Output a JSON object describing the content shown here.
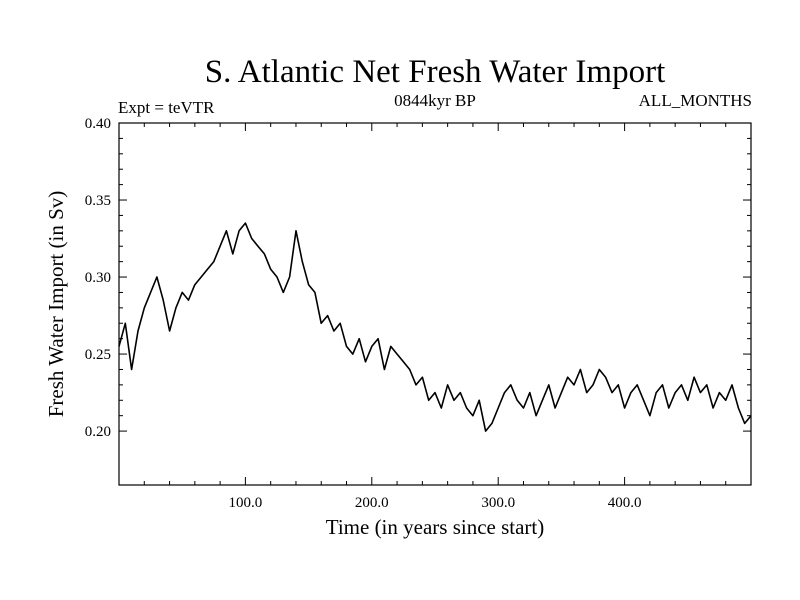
{
  "chart_data": {
    "type": "line",
    "title": "S. Atlantic Net Fresh Water Import",
    "subtitle_left": "Expt = teVTR",
    "subtitle_center": "0844kyr BP",
    "subtitle_right": "ALL_MONTHS",
    "xlabel": "Time (in years since start)",
    "ylabel": "Fresh Water Import (in Sv)",
    "xlim": [
      0,
      500
    ],
    "ylim": [
      0.165,
      0.4
    ],
    "xticks": [
      100,
      200,
      300,
      400
    ],
    "xtick_labels": [
      "100.0",
      "200.0",
      "300.0",
      "400.0"
    ],
    "yticks": [
      0.2,
      0.25,
      0.3,
      0.35,
      0.4
    ],
    "ytick_labels": [
      "0.20",
      "0.25",
      "0.30",
      "0.35",
      "0.40"
    ],
    "grid": false,
    "series": [
      {
        "name": "Fresh Water Import",
        "color": "#000000",
        "x": [
          0,
          5,
          10,
          15,
          20,
          25,
          30,
          35,
          40,
          45,
          50,
          55,
          60,
          65,
          70,
          75,
          80,
          85,
          90,
          95,
          100,
          105,
          110,
          115,
          120,
          125,
          130,
          135,
          140,
          145,
          150,
          155,
          160,
          165,
          170,
          175,
          180,
          185,
          190,
          195,
          200,
          205,
          210,
          215,
          220,
          225,
          230,
          235,
          240,
          245,
          250,
          255,
          260,
          265,
          270,
          275,
          280,
          285,
          290,
          295,
          300,
          305,
          310,
          315,
          320,
          325,
          330,
          335,
          340,
          345,
          350,
          355,
          360,
          365,
          370,
          375,
          380,
          385,
          390,
          395,
          400,
          405,
          410,
          415,
          420,
          425,
          430,
          435,
          440,
          445,
          450,
          455,
          460,
          465,
          470,
          475,
          480,
          485,
          490,
          495,
          500
        ],
        "values": [
          0.255,
          0.27,
          0.24,
          0.265,
          0.28,
          0.29,
          0.3,
          0.285,
          0.265,
          0.28,
          0.29,
          0.285,
          0.295,
          0.3,
          0.305,
          0.31,
          0.32,
          0.33,
          0.315,
          0.33,
          0.335,
          0.325,
          0.32,
          0.315,
          0.305,
          0.3,
          0.29,
          0.3,
          0.33,
          0.31,
          0.295,
          0.29,
          0.27,
          0.275,
          0.265,
          0.27,
          0.255,
          0.25,
          0.26,
          0.245,
          0.255,
          0.26,
          0.24,
          0.255,
          0.25,
          0.245,
          0.24,
          0.23,
          0.235,
          0.22,
          0.225,
          0.215,
          0.23,
          0.22,
          0.225,
          0.215,
          0.21,
          0.22,
          0.2,
          0.205,
          0.215,
          0.225,
          0.23,
          0.22,
          0.215,
          0.225,
          0.21,
          0.22,
          0.23,
          0.215,
          0.225,
          0.235,
          0.23,
          0.24,
          0.225,
          0.23,
          0.24,
          0.235,
          0.225,
          0.23,
          0.215,
          0.225,
          0.23,
          0.22,
          0.21,
          0.225,
          0.23,
          0.215,
          0.225,
          0.23,
          0.22,
          0.235,
          0.225,
          0.23,
          0.215,
          0.225,
          0.22,
          0.23,
          0.215,
          0.205,
          0.21
        ]
      }
    ]
  }
}
